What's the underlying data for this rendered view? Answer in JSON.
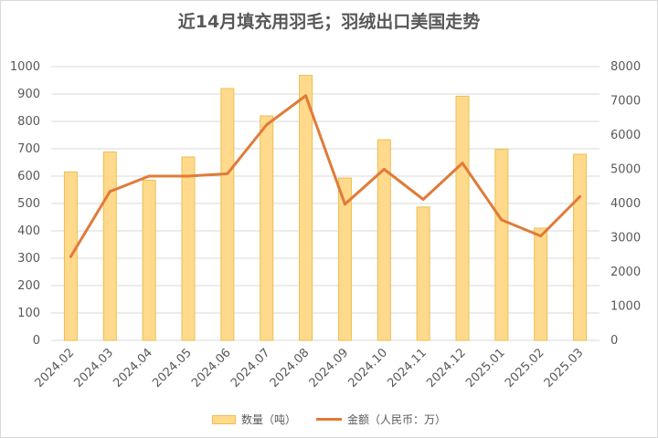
{
  "title": "近14月填充用羽毛；羽绒出口美国走势",
  "colors": {
    "bar_fill": "#ffd98c",
    "bar_stroke": "#ecbf50",
    "line": "#e07b39",
    "grid": "#d9d9d9",
    "text": "#595959"
  },
  "legend": {
    "bar_label": "数量（吨）",
    "line_label": "金额（人民币：万）"
  },
  "chart_data": {
    "type": "bar",
    "title": "近14月填充用羽毛；羽绒出口美国走势",
    "categories": [
      "2024.02",
      "2024.03",
      "2024.04",
      "2024.05",
      "2024.06",
      "2024.07",
      "2024.08",
      "2024.09",
      "2024.10",
      "2024.11",
      "2024.12",
      "2025.01",
      "2025.02",
      "2025.03"
    ],
    "y_left": {
      "min": 0,
      "max": 1000,
      "step": 100,
      "ticks": [
        "0",
        "100",
        "200",
        "300",
        "400",
        "500",
        "600",
        "700",
        "800",
        "900",
        "1000"
      ]
    },
    "y_right": {
      "min": 0,
      "max": 8000,
      "step": 1000,
      "ticks": [
        "0",
        "1000",
        "2000",
        "3000",
        "4000",
        "5000",
        "6000",
        "7000",
        "8000"
      ]
    },
    "grid": true,
    "legend_position": "bottom",
    "series": [
      {
        "name": "数量（吨）",
        "type": "bar",
        "axis": "left",
        "values": [
          615,
          688,
          585,
          670,
          920,
          820,
          968,
          593,
          733,
          487,
          892,
          698,
          410,
          680
        ]
      },
      {
        "name": "金额（人民币：万）",
        "type": "line",
        "axis": "right",
        "values": [
          2450,
          4350,
          4800,
          4800,
          4870,
          6300,
          7150,
          3980,
          5000,
          4120,
          5180,
          3520,
          3050,
          4200
        ]
      }
    ]
  }
}
